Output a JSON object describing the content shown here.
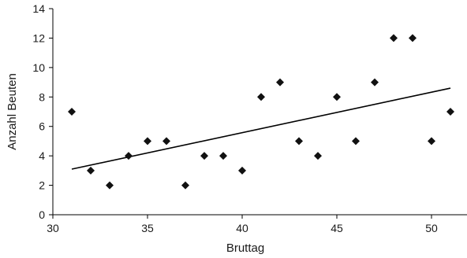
{
  "chart_data": {
    "type": "scatter",
    "title": "",
    "xlabel": "Bruttag",
    "ylabel": "Anzahl Beuten",
    "xlim": [
      30,
      52
    ],
    "ylim": [
      0,
      14
    ],
    "x_ticks": [
      30,
      35,
      40,
      45,
      50
    ],
    "y_ticks": [
      0,
      2,
      4,
      6,
      8,
      10,
      12,
      14
    ],
    "marker": "diamond",
    "points": [
      {
        "x": 31,
        "y": 7
      },
      {
        "x": 32,
        "y": 3
      },
      {
        "x": 33,
        "y": 2
      },
      {
        "x": 34,
        "y": 4
      },
      {
        "x": 35,
        "y": 5
      },
      {
        "x": 36,
        "y": 5
      },
      {
        "x": 37,
        "y": 2
      },
      {
        "x": 38,
        "y": 4
      },
      {
        "x": 39,
        "y": 4
      },
      {
        "x": 40,
        "y": 3
      },
      {
        "x": 41,
        "y": 8
      },
      {
        "x": 42,
        "y": 9
      },
      {
        "x": 43,
        "y": 5
      },
      {
        "x": 44,
        "y": 4
      },
      {
        "x": 45,
        "y": 8
      },
      {
        "x": 46,
        "y": 5
      },
      {
        "x": 47,
        "y": 9
      },
      {
        "x": 48,
        "y": 12
      },
      {
        "x": 49,
        "y": 12
      },
      {
        "x": 50,
        "y": 5
      },
      {
        "x": 51,
        "y": 7
      }
    ],
    "trendline": {
      "type": "linear",
      "x_start": 31,
      "y_start": 3.1,
      "x_end": 51,
      "y_end": 8.6
    },
    "grid": false,
    "legend": "none"
  }
}
